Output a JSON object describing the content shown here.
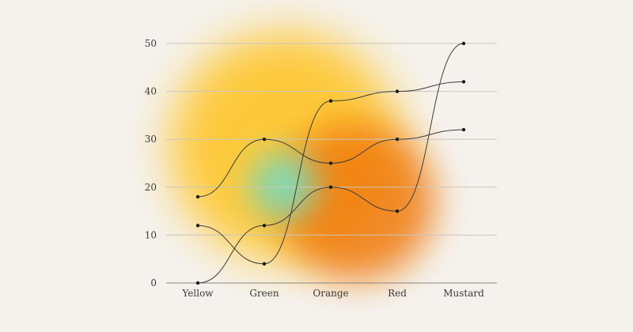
{
  "chart_data": {
    "type": "line",
    "title": "",
    "xlabel": "",
    "ylabel": "",
    "categories": [
      "Yellow",
      "Green",
      "Orange",
      "Red",
      "Mustard"
    ],
    "ylim": [
      0,
      50
    ],
    "yticks": [
      0,
      10,
      20,
      30,
      40,
      50
    ],
    "grid": true,
    "smooth": true,
    "series": [
      {
        "values": [
          18,
          30,
          25,
          30,
          32
        ]
      },
      {
        "values": [
          12,
          4,
          38,
          40,
          42
        ]
      },
      {
        "values": [
          0,
          12,
          20,
          15,
          50
        ]
      }
    ],
    "background_blobs": [
      {
        "color": "#ffc21a",
        "role": "yellow glow"
      },
      {
        "color": "#f07a08",
        "role": "orange glow"
      },
      {
        "color": "#7fdcb8",
        "role": "mint glow"
      }
    ],
    "colors": {
      "background": "#f5f2ee",
      "line": "#3b3b3b",
      "point": "#1a1a1a",
      "grid": "#c9c6c2"
    }
  }
}
